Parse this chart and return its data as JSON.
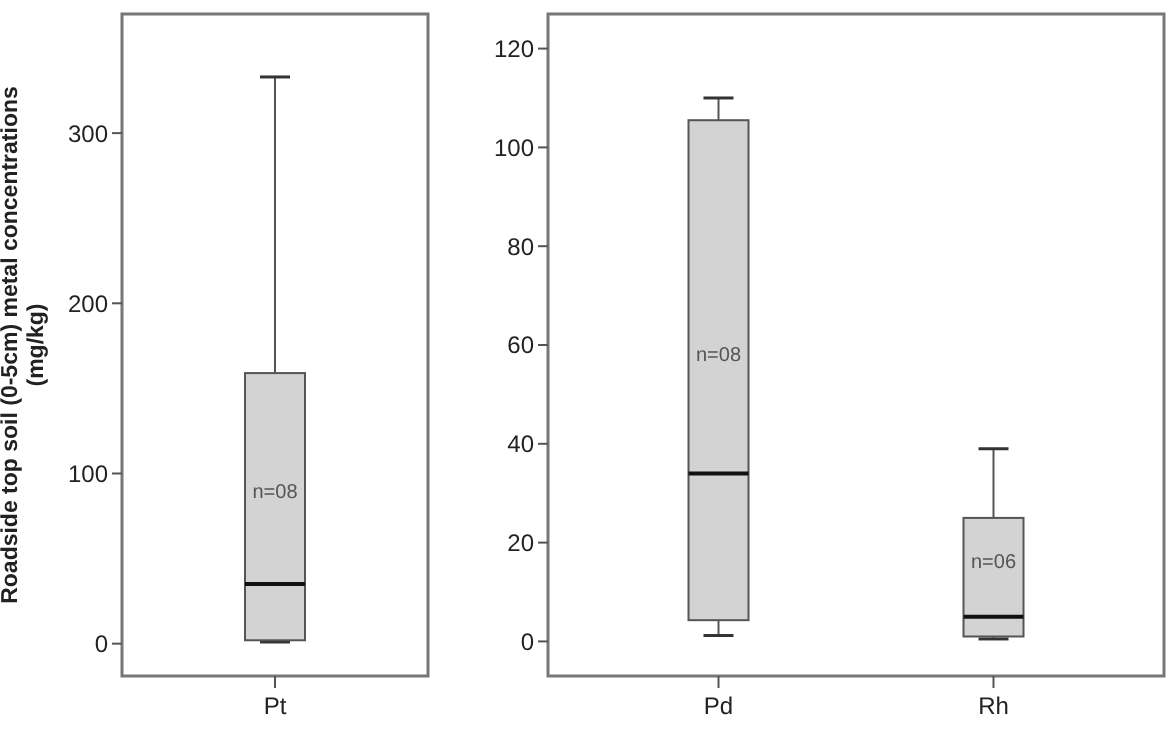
{
  "chart_data": [
    {
      "type": "box",
      "ylabel": "Roadside top soil (0-5cm) metal concentrations\n(mg/kg)",
      "categories": [
        "Pt"
      ],
      "series": [
        {
          "color": "#d3d3d3",
          "boxes": [
            {
              "low": 1,
              "q1": 2,
              "median": 35,
              "q3": 159,
              "high": 333
            }
          ]
        }
      ],
      "ylim": [
        -19,
        370
      ],
      "yticks": [
        0,
        100,
        200,
        300
      ],
      "annotations": [
        "n=08"
      ]
    },
    {
      "type": "box",
      "categories": [
        "Pd",
        "Rh"
      ],
      "series": [
        {
          "color": "#d3d3d3",
          "boxes": [
            {
              "low": 1.2,
              "q1": 4.3,
              "median": 34,
              "q3": 105.5,
              "high": 110
            },
            {
              "low": 0.5,
              "q1": 1,
              "median": 5,
              "q3": 25,
              "high": 39
            }
          ]
        }
      ],
      "ylim": [
        -7,
        127
      ],
      "yticks": [
        0,
        20,
        40,
        60,
        80,
        100,
        120
      ],
      "annotations": [
        "n=08",
        "n=06"
      ]
    }
  ]
}
